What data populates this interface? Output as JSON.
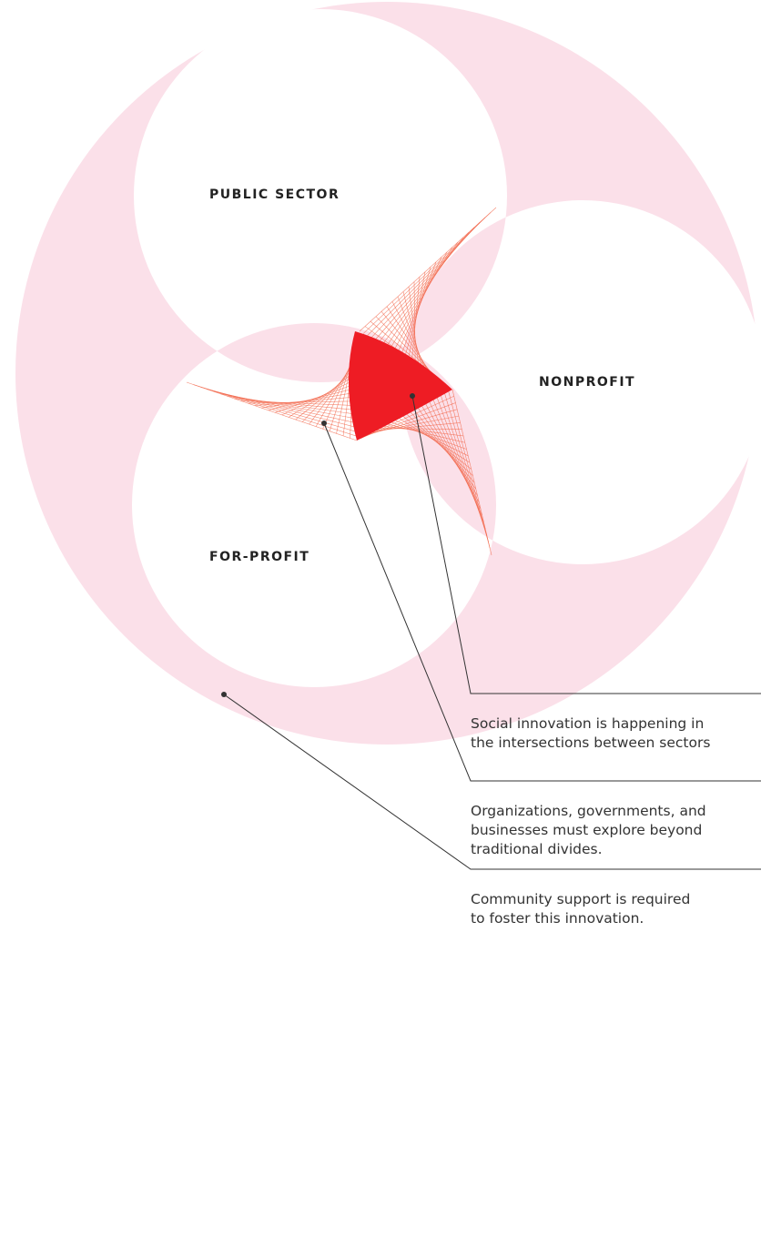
{
  "labels": {
    "public": "PUBLIC SECTOR",
    "nonprofit": "NONPROFIT",
    "forprofit": "FOR-PROFIT"
  },
  "notes": [
    [
      "Social innovation is happening in",
      "the intersections between sectors"
    ],
    [
      "Organizations, governments, and",
      "businesses must explore beyond",
      "traditional divides."
    ],
    [
      "Community support is required",
      "to foster this innovation."
    ]
  ]
}
